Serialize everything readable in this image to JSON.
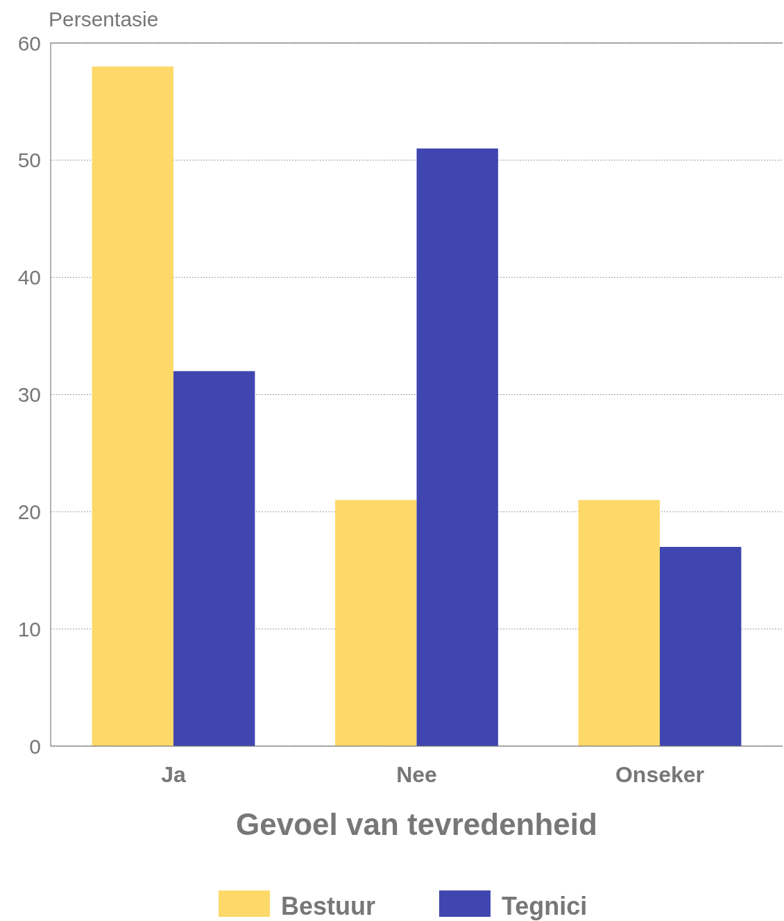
{
  "chart_data": {
    "type": "bar",
    "ylabel": "Persentasie",
    "xlabel": "Gevoel van tevredenheid",
    "categories": [
      "Ja",
      "Nee",
      "Onseker"
    ],
    "series": [
      {
        "name": "Bestuur",
        "color": "#fdd96a",
        "values": [
          58,
          21,
          21
        ]
      },
      {
        "name": "Tegnici",
        "color": "#4046b0",
        "values": [
          32,
          51,
          17
        ]
      }
    ],
    "ylim": [
      0,
      60
    ],
    "yticks": [
      0,
      10,
      20,
      30,
      40,
      50,
      60
    ],
    "grid": "y",
    "legend": "bottom"
  }
}
